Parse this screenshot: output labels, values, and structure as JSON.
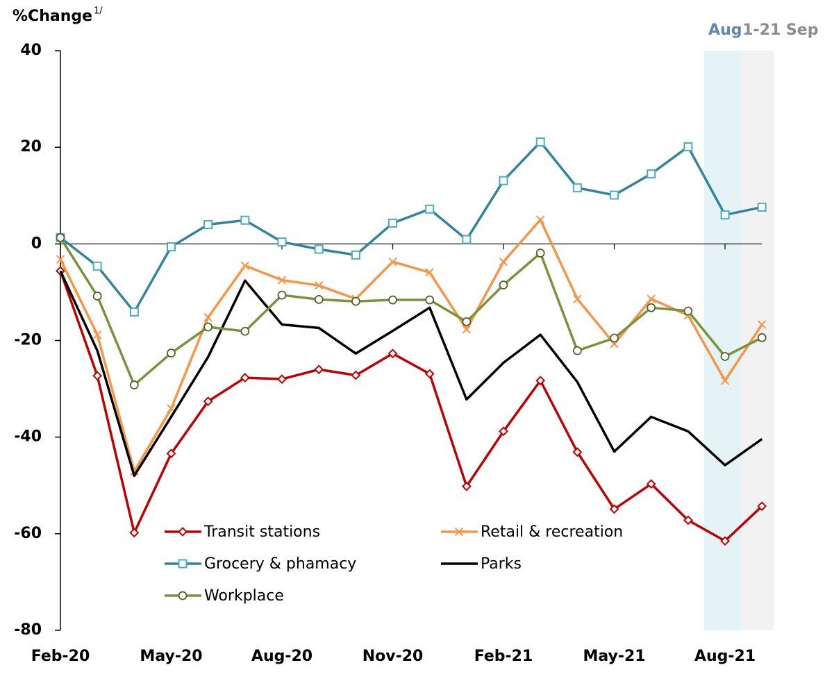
{
  "chart_data": {
    "type": "line",
    "y_label": "%Change",
    "y_label_note": "1/",
    "annotations": [
      "Aug",
      "1-21 Sep"
    ],
    "categories": [
      "Feb-20",
      null,
      null,
      "May-20",
      null,
      null,
      "Aug-20",
      null,
      null,
      "Nov-20",
      null,
      null,
      "Feb-21",
      null,
      null,
      "May-21",
      null,
      null,
      "Aug-21",
      null
    ],
    "ylim": [
      -80,
      40
    ],
    "yticks": [
      -80,
      -60,
      -40,
      -20,
      0,
      20,
      40
    ],
    "legend": "bottom-left",
    "series": [
      {
        "name": "Transit stations",
        "color": "#c00000",
        "marker": "diamond",
        "values": [
          -5.6,
          -27.3,
          -59.8,
          -43.4,
          -32.6,
          -27.7,
          -28,
          -26,
          -27.2,
          -22.7,
          -26.9,
          -50.2,
          -38.8,
          -28.3,
          -43.1,
          -54.9,
          -49.7,
          -57.2,
          -61.5,
          -54.3
        ]
      },
      {
        "name": "Retail & recreation",
        "color": "#f79646",
        "marker": "x",
        "values": [
          -3.2,
          -18.8,
          -47.1,
          -34.1,
          -15.2,
          -4.5,
          -7.5,
          -8.6,
          -11.4,
          -3.7,
          -5.9,
          -17.7,
          -3.7,
          5,
          -11.4,
          -20.7,
          -11.4,
          -14.8,
          -28.3,
          -16.7
        ]
      },
      {
        "name": "Grocery & phamacy",
        "color": "#31849b",
        "marker": "square",
        "values": [
          1.3,
          -4.6,
          -14.1,
          -0.6,
          4,
          4.9,
          0.4,
          -1.1,
          -2.3,
          4.3,
          7.2,
          0.9,
          13.1,
          21.1,
          11.6,
          10.1,
          14.5,
          20.1,
          6,
          7.6
        ]
      },
      {
        "name": "Parks",
        "color": "#000000",
        "marker": "none",
        "values": [
          -5.6,
          -22.1,
          -48,
          -35.8,
          -23.4,
          -7.6,
          -16.7,
          -17.4,
          -22.7,
          -18,
          -13.2,
          -32.2,
          -24.6,
          -18.8,
          -28.6,
          -43,
          -35.8,
          -38.8,
          -45.8,
          -40.4
        ]
      },
      {
        "name": "Workplace",
        "color": "#77933c",
        "marker": "circle",
        "values": [
          1.3,
          -10.8,
          -29.2,
          -22.6,
          -17.2,
          -18.1,
          -10.6,
          -11.5,
          -11.9,
          -11.6,
          -11.6,
          -16.1,
          -8.5,
          -1.9,
          -22.1,
          -19.5,
          -13.2,
          -13.9,
          -23.3,
          -19.4
        ]
      }
    ]
  }
}
